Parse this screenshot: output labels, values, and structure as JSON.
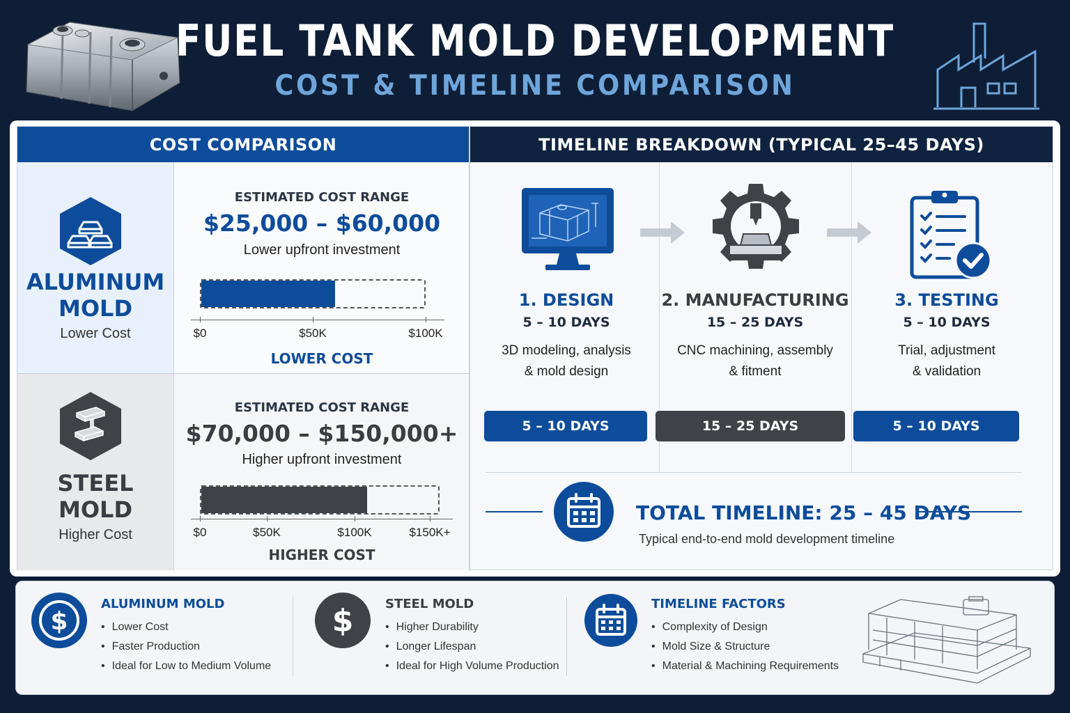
{
  "header": {
    "title": "FUEL TANK MOLD DEVELOPMENT",
    "subtitle": "COST & TIMELINE COMPARISON"
  },
  "colors": {
    "blue": "#0d4c9a",
    "navy": "#0f2340",
    "gray": "#3f4247",
    "light_blue": "#6ea5db"
  },
  "cost": {
    "heading": "COST COMPARISON",
    "aluminum": {
      "name_line1": "ALUMINUM",
      "name_line2": "MOLD",
      "tag": "Lower Cost",
      "icon": "ingot-icon",
      "range_label": "ESTIMATED COST RANGE",
      "range": "$25,000 – $60,000",
      "note": "Lower upfront investment",
      "bar_fraction": 0.6,
      "ticks": [
        "$0",
        "$50K",
        "$100K"
      ],
      "caption": "LOWER COST"
    },
    "steel": {
      "name_line1": "STEEL",
      "name_line2": "MOLD",
      "tag": "Higher Cost",
      "icon": "steel-beam-icon",
      "range_label": "ESTIMATED COST RANGE",
      "range": "$70,000 – $150,000+",
      "note": "Higher upfront investment",
      "bar_fraction": 0.7,
      "ticks": [
        "$0",
        "$50K",
        "$100K",
        "$150K+"
      ],
      "caption": "HIGHER COST"
    }
  },
  "timeline": {
    "heading": "TIMELINE BREAKDOWN (TYPICAL 25–45 DAYS)",
    "steps": [
      {
        "title": "1. DESIGN",
        "days": "5 – 10 DAYS",
        "desc_line1": "3D modeling, analysis",
        "desc_line2": "& mold design",
        "pill": "5 – 10 DAYS",
        "icon": "monitor-cad-icon"
      },
      {
        "title": "2. MANUFACTURING",
        "days": "15 – 25 DAYS",
        "desc_line1": "CNC machining, assembly",
        "desc_line2": "& fitment",
        "pill": "15 – 25 DAYS",
        "icon": "cnc-gear-icon"
      },
      {
        "title": "3. TESTING",
        "days": "5 – 10 DAYS",
        "desc_line1": "Trial, adjustment",
        "desc_line2": "& validation",
        "pill": "5 – 10 DAYS",
        "icon": "clipboard-check-icon"
      }
    ],
    "total_title": "TOTAL TIMELINE: 25 – 45 DAYS",
    "total_sub": "Typical end-to-end mold development timeline"
  },
  "summary": [
    {
      "title": "ALUMINUM MOLD",
      "icon": "dollar-icon",
      "items": [
        "Lower Cost",
        "Faster Production",
        "Ideal for Low to Medium Volume"
      ]
    },
    {
      "title": "STEEL MOLD",
      "icon": "dollar-icon",
      "items": [
        "Higher Durability",
        "Longer Lifespan",
        "Ideal for High Volume Production"
      ]
    },
    {
      "title": "TIMELINE FACTORS",
      "icon": "calendar-icon",
      "items": [
        "Complexity of Design",
        "Mold Size & Structure",
        "Material & Machining Requirements"
      ]
    }
  ]
}
